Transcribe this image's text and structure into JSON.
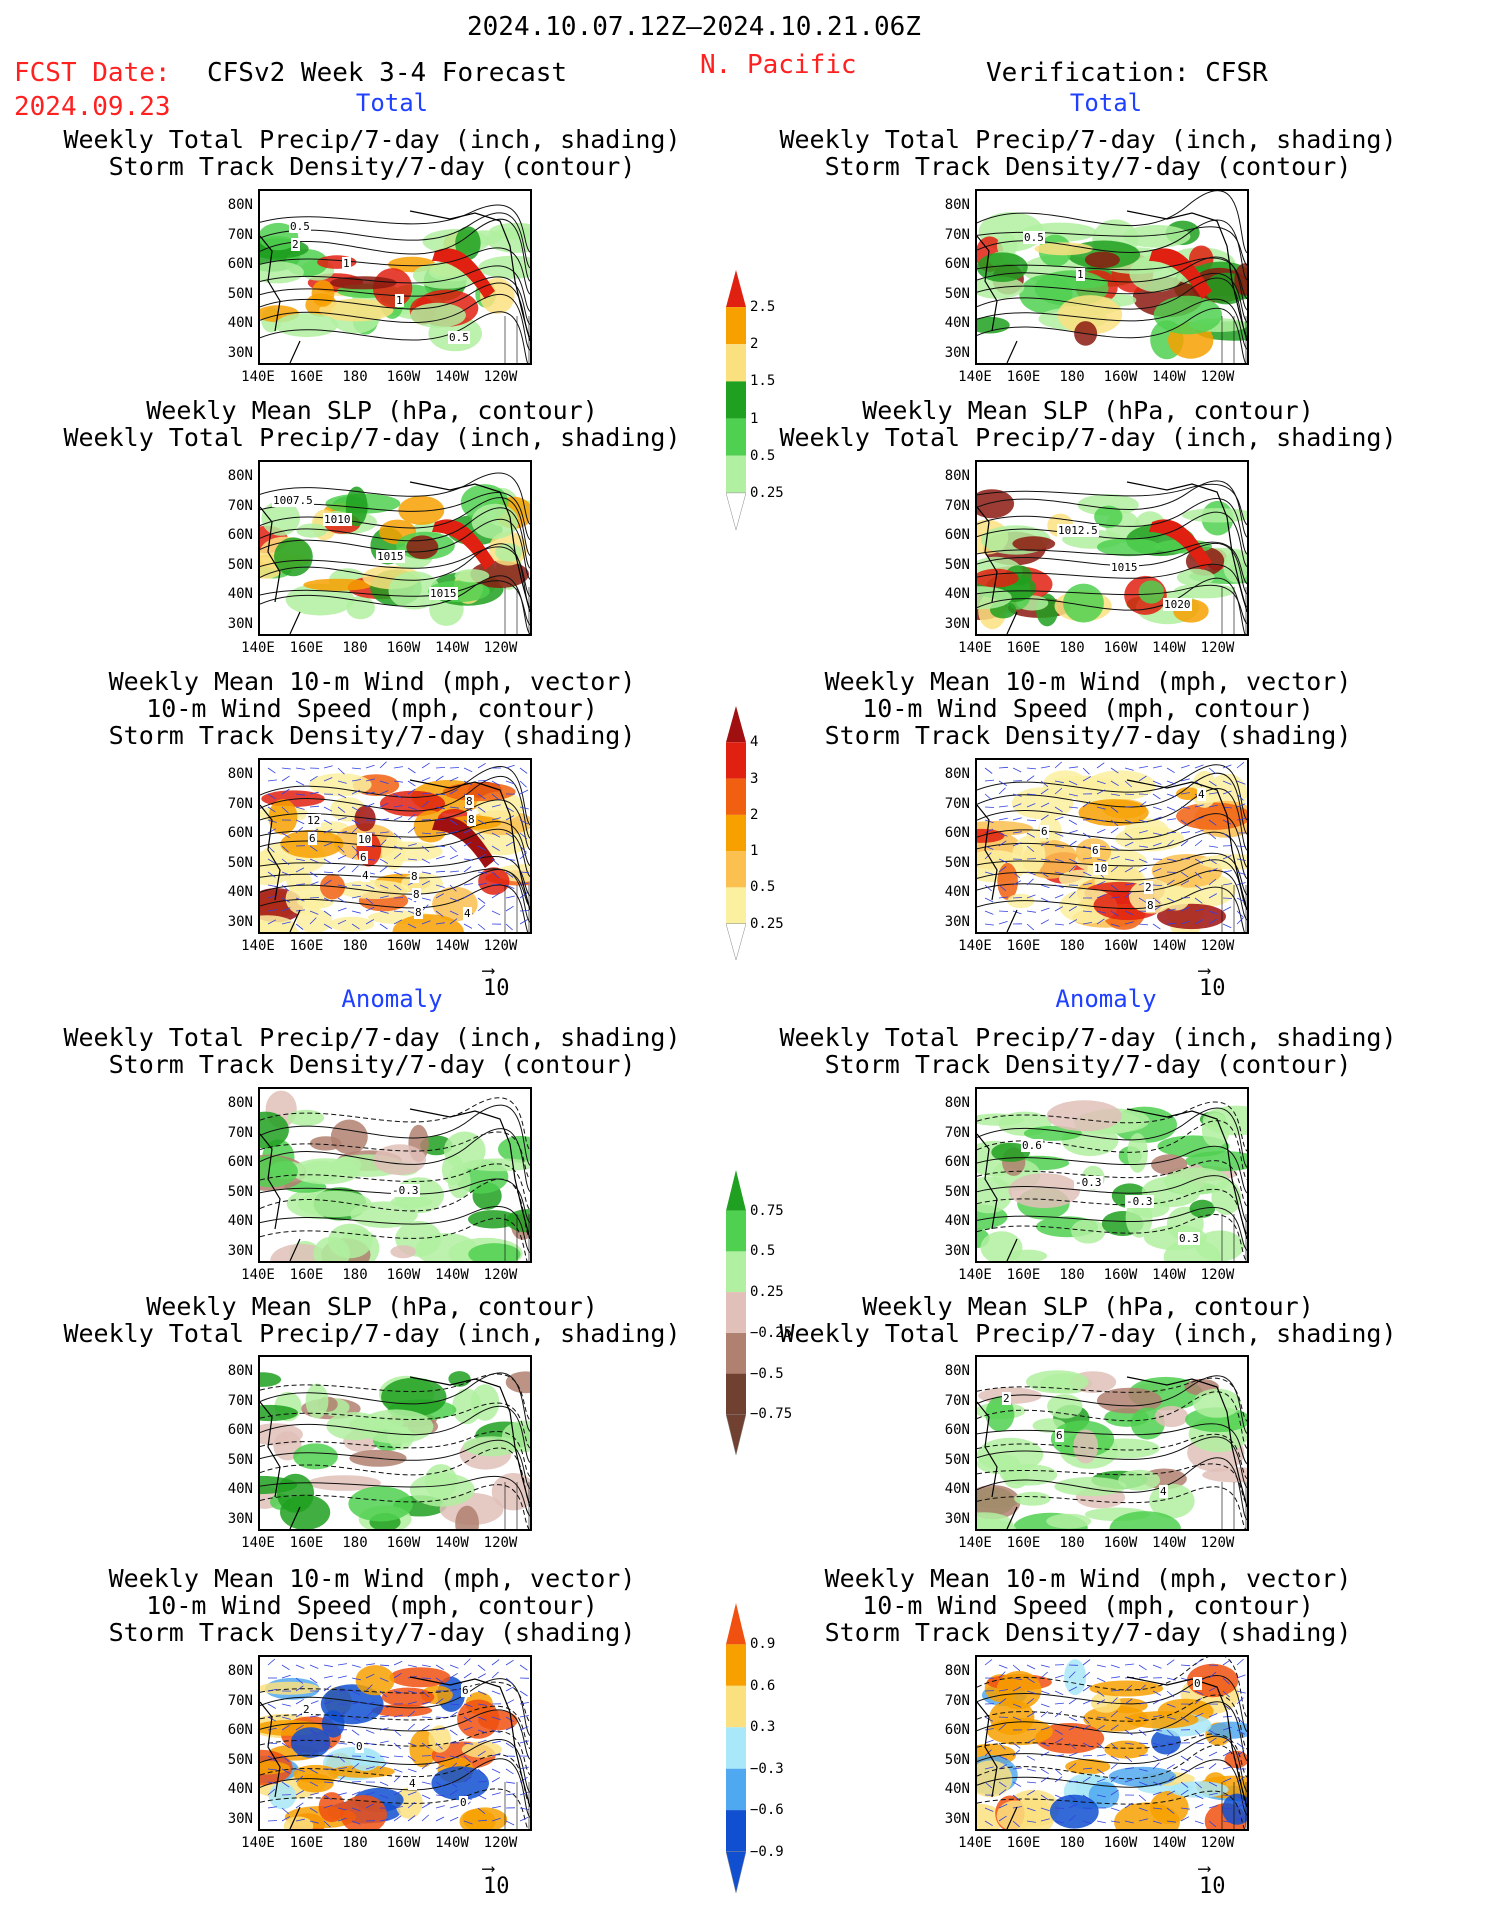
{
  "header": {
    "date_range": "2024.10.07.12Z–2024.10.21.06Z",
    "fcst_label": "FCST Date:",
    "fcst_date": "2024.09.23",
    "product": "CFSv2 Week 3-4 Forecast",
    "region": "N. Pacific",
    "verification": "Verification: CFSR"
  },
  "sections": {
    "total": "Total",
    "anomaly": "Anomaly"
  },
  "panel_titles": {
    "precip_track": [
      "Weekly Total Precip/7-day (inch, shading)",
      "Storm Track Density/7-day (contour)"
    ],
    "slp_precip": [
      "Weekly Mean SLP (hPa, contour)",
      "Weekly Total Precip/7-day (inch, shading)"
    ],
    "wind_track": [
      "Weekly Mean 10-m Wind (mph, vector)",
      "10-m Wind Speed (mph, contour)",
      "Storm Track Density/7-day (shading)"
    ]
  },
  "axes": {
    "lat": [
      "80N",
      "70N",
      "60N",
      "50N",
      "40N",
      "30N"
    ],
    "lon": [
      "140E",
      "160E",
      "180",
      "160W",
      "140W",
      "120W"
    ]
  },
  "vector_ref": "10",
  "colorbars": {
    "precip_total": {
      "labels": [
        "2.5",
        "2",
        "1.5",
        "1",
        "0.5",
        "0.25"
      ],
      "colors": [
        "#e02010",
        "#f7a000",
        "#fbe080",
        "#20a020",
        "#50d050",
        "#b0f0a0"
      ]
    },
    "track_total": {
      "labels": [
        "4",
        "3",
        "2",
        "1",
        "0.5",
        "0.25"
      ],
      "colors": [
        "#a01010",
        "#e02010",
        "#f06010",
        "#f7a000",
        "#fbc050",
        "#fbf0a0"
      ]
    },
    "precip_anom": {
      "labels": [
        "0.75",
        "0.5",
        "0.25",
        "−0.25",
        "−0.5",
        "−0.75"
      ],
      "colors": [
        "#20a020",
        "#50d050",
        "#b0f0a0",
        "#e0c0b8",
        "#b08070",
        "#704030"
      ]
    },
    "track_anom": {
      "labels": [
        "0.9",
        "0.6",
        "0.3",
        "−0.3",
        "−0.6",
        "−0.9"
      ],
      "colors": [
        "#f05010",
        "#f7a000",
        "#fbe080",
        "#a8e8f8",
        "#50a8f0",
        "#1050d0"
      ]
    }
  },
  "contour_labels": {
    "p1": [
      "0.5",
      "1",
      "1",
      "0.5",
      "2"
    ],
    "p2": [
      "1010",
      "1015",
      "1015",
      "1007.5"
    ],
    "p3": [
      "10",
      "8",
      "4",
      "12",
      "6",
      "8",
      "8",
      "6",
      "4",
      "8",
      "8"
    ],
    "p4": [
      "-0.3"
    ],
    "p6": [
      "0",
      "2",
      "0",
      "4",
      "6"
    ],
    "q1": [
      "0.5",
      "1"
    ],
    "q2": [
      "1012.5",
      "1015",
      "1020"
    ],
    "q3": [
      "6",
      "2",
      "4",
      "6",
      "10",
      "8"
    ],
    "q4": [
      "-0.3",
      "0.3",
      "0.6",
      "-0.3"
    ],
    "q5": [
      "4",
      "2",
      "6"
    ],
    "q6": [
      "0"
    ]
  }
}
